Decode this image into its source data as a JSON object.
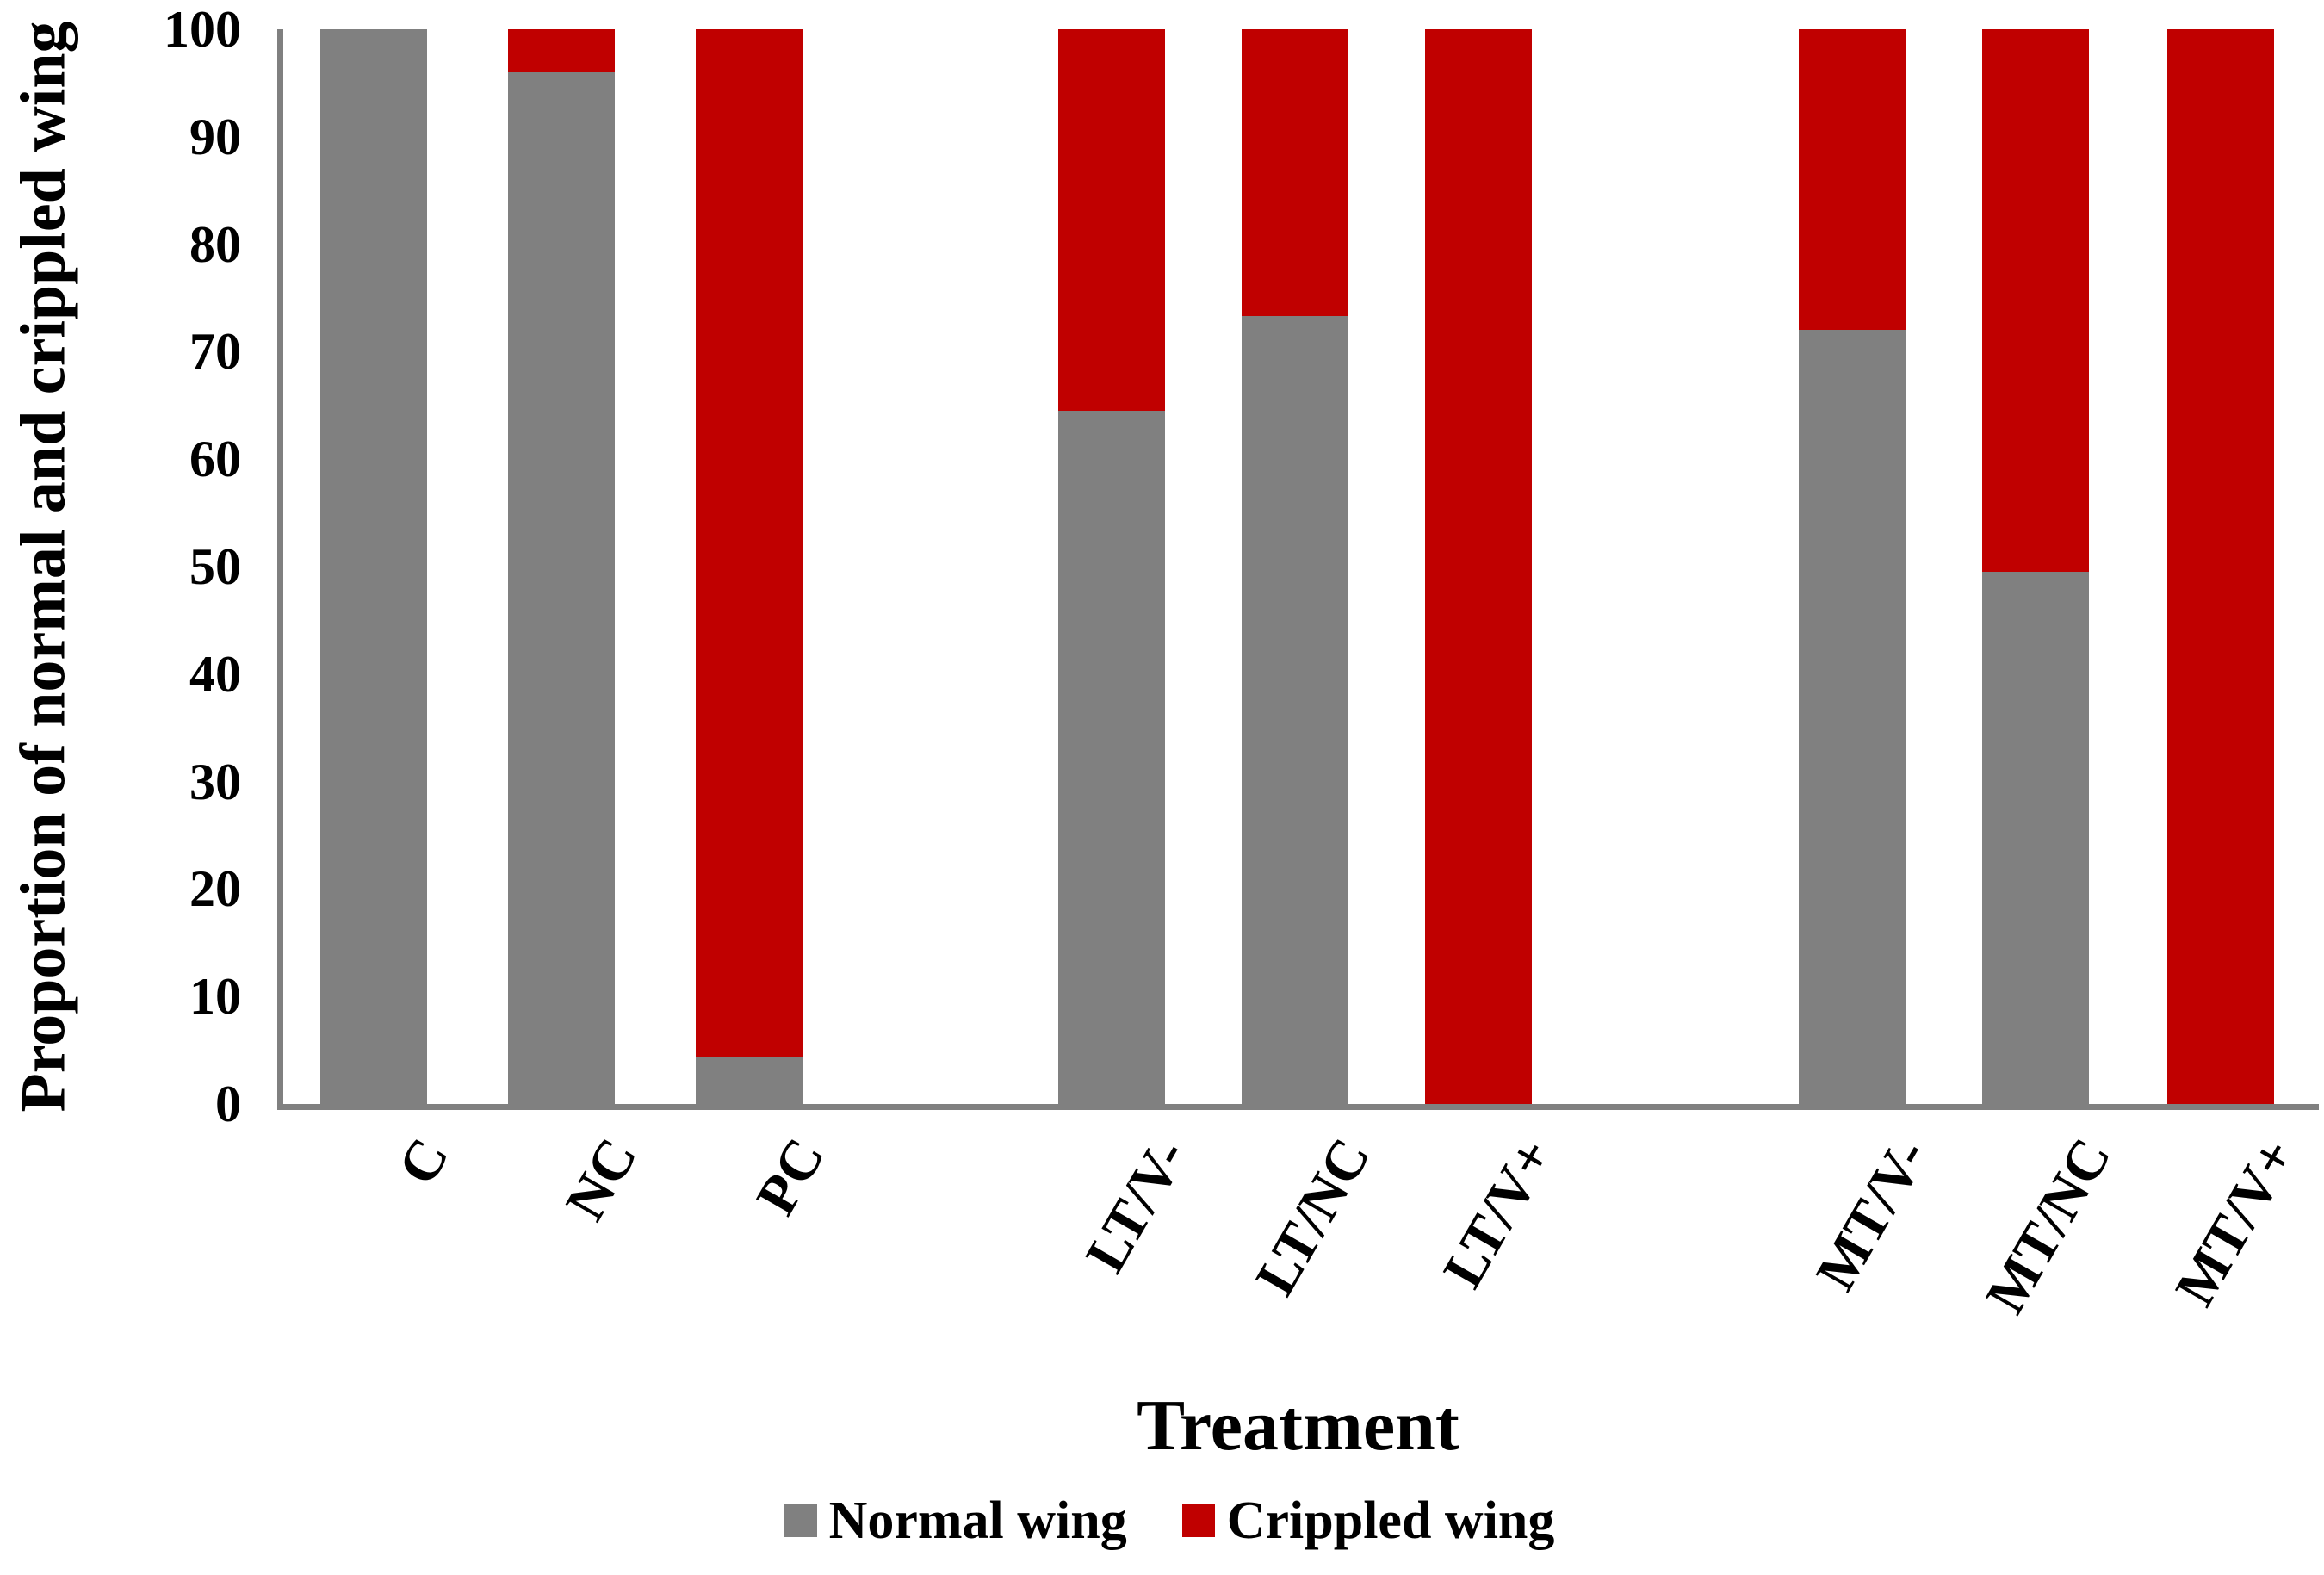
{
  "figure": {
    "background_color": "#ffffff",
    "text_color": "#000000"
  },
  "chart_data": {
    "type": "bar",
    "stacked": true,
    "orientation": "vertical",
    "title": "",
    "xlabel": "Treatment",
    "ylabel": "Proportion of normal and crippled wing",
    "categories": [
      "C",
      "NC",
      "PC",
      "LT/V-",
      "LT/NC",
      "LT/V+",
      "MT/V-",
      "MT/NC",
      "MT/V+"
    ],
    "series": [
      {
        "name": "Normal wing",
        "color": "#808080",
        "values": [
          100,
          96,
          4.4,
          64.5,
          73.3,
          0,
          72,
          49.5,
          0
        ]
      },
      {
        "name": "Crippled wing",
        "color": "#c00000",
        "values": [
          0,
          4,
          95.6,
          35.5,
          26.7,
          100,
          28,
          50.5,
          100
        ]
      }
    ],
    "ylim": [
      0,
      100
    ],
    "y_ticks": [
      0,
      10,
      20,
      30,
      40,
      50,
      60,
      70,
      80,
      90,
      100
    ],
    "grid": "off",
    "tick_marks": "none",
    "legend_position": "bottom",
    "axis_color": "#808080",
    "category_groups": [
      [
        "C",
        "NC",
        "PC"
      ],
      [
        "LT/V-",
        "LT/NC",
        "LT/V+"
      ],
      [
        "MT/V-",
        "MT/NC",
        "MT/V+"
      ]
    ],
    "x_tick_label_rotation_deg": 60
  }
}
